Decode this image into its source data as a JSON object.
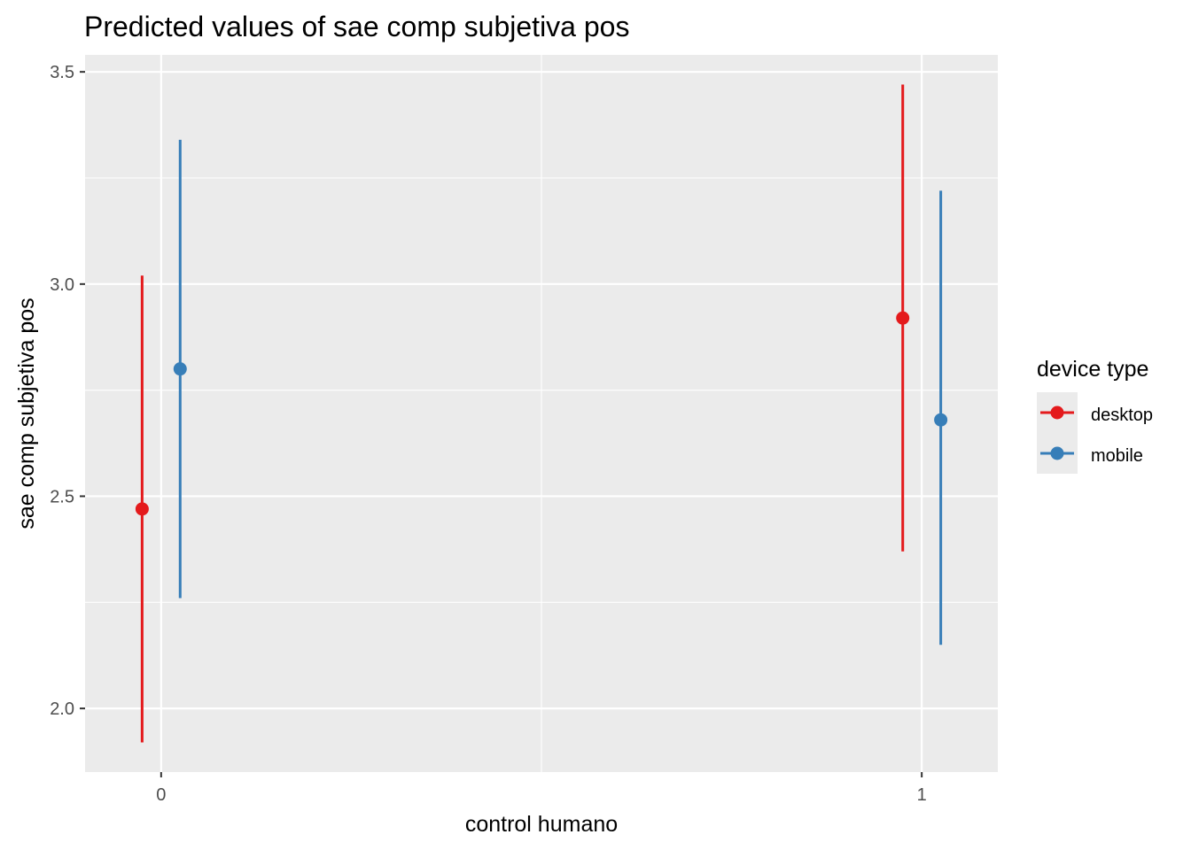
{
  "chart_data": {
    "type": "scatter",
    "title": "Predicted values of sae comp subjetiva pos",
    "xlabel": "control humano",
    "ylabel": "sae comp subjetiva pos",
    "x_categories": [
      "0",
      "1"
    ],
    "xlim": [
      -0.1,
      1.1
    ],
    "ylim": [
      1.85,
      3.54
    ],
    "y_ticks": [
      2.0,
      2.5,
      3.0,
      3.5
    ],
    "y_tick_labels": [
      "2.0",
      "2.5",
      "3.0",
      "3.5"
    ],
    "grid": true,
    "legend": {
      "title": "device type",
      "placement": "right"
    },
    "series": [
      {
        "name": "desktop",
        "color": "#e41a1c",
        "points": [
          {
            "x": 0,
            "y": 2.47,
            "lower": 1.92,
            "upper": 3.02
          },
          {
            "x": 1,
            "y": 2.92,
            "lower": 2.37,
            "upper": 3.47
          }
        ]
      },
      {
        "name": "mobile",
        "color": "#377eb8",
        "points": [
          {
            "x": 0,
            "y": 2.8,
            "lower": 2.26,
            "upper": 3.34
          },
          {
            "x": 1,
            "y": 2.68,
            "lower": 2.15,
            "upper": 3.22
          }
        ]
      }
    ]
  }
}
